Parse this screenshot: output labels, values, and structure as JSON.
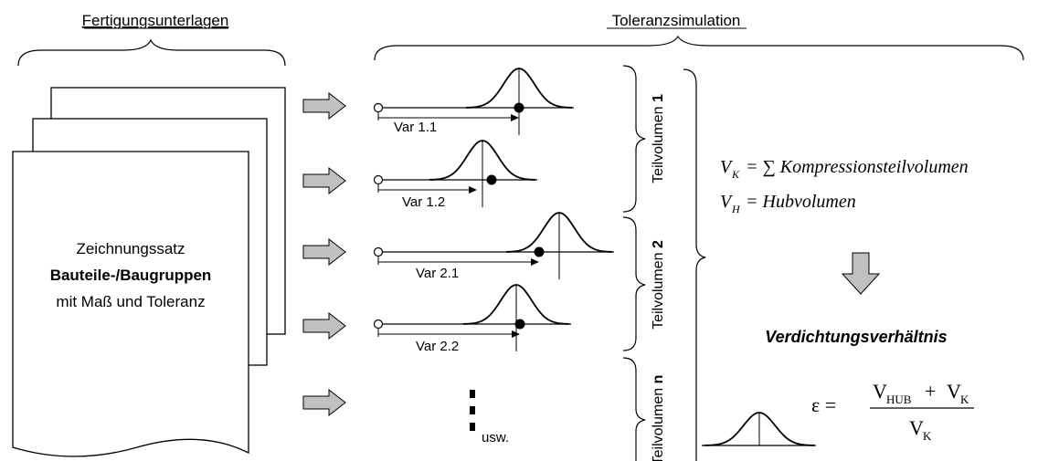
{
  "headers": {
    "left": "Fertigungsunterlagen",
    "right": "Toleranzsimulation"
  },
  "document": {
    "line1": "Zeichnungssatz",
    "line2": "Bauteile-/Baugruppen",
    "line3": "mit Maß und Toleranz"
  },
  "variables": [
    {
      "label": "Var 1.1"
    },
    {
      "label": "Var 1.2"
    },
    {
      "label": "Var 2.1"
    },
    {
      "label": "Var 2.2"
    }
  ],
  "etc_label": "usw.",
  "groups": [
    {
      "prefix": "Teilvolumen ",
      "index": "1"
    },
    {
      "prefix": "Teilvolumen ",
      "index": "2"
    },
    {
      "prefix": "Teilvolumen ",
      "index": "n"
    }
  ],
  "formulas": {
    "vk_sym": "V",
    "vk_sub": "K",
    "vk_rhs": "= ∑ Kompressionsteilvolumen",
    "vh_sym": "V",
    "vh_sub": "H",
    "vh_rhs": "= Hubvolumen"
  },
  "result": {
    "title": "Verdichtungsverhältnis",
    "epsilon": "ε =",
    "num_v1": "V",
    "num_sub1": "HUB",
    "num_plus": "+",
    "num_v2": "V",
    "num_sub2": "K",
    "den_v": "V",
    "den_sub": "K"
  },
  "colors": {
    "arrow_fill": "#c0c0c0",
    "stroke": "#000000"
  }
}
